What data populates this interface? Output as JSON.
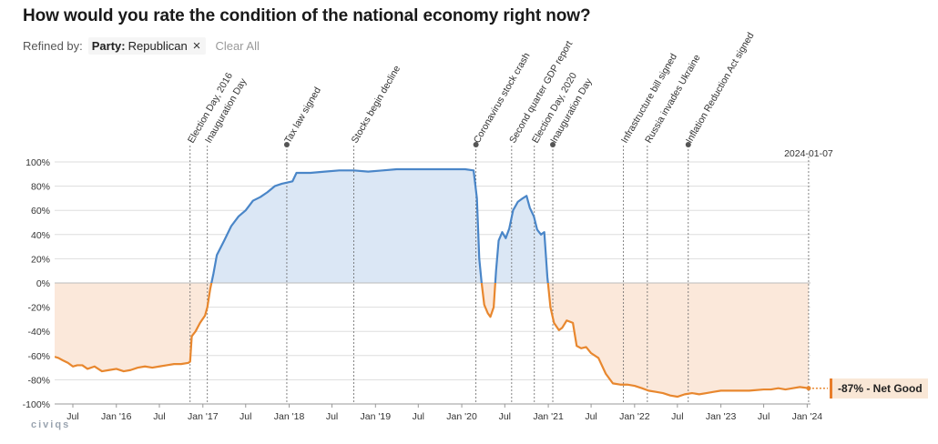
{
  "title": "How would you rate the condition of the national economy right now?",
  "filter": {
    "label": "Refined by:",
    "chip_key": "Party:",
    "chip_value": "Republican",
    "clear_label": "Clear All"
  },
  "brand": "civiqs",
  "badge_text": "-87% - Net Good",
  "colors": {
    "positive": "#4a86c8",
    "positive_fill": "#dbe7f5",
    "negative": "#e8872e",
    "negative_fill": "#fbe8da",
    "gridline": "#dddddd",
    "event_line": "#666666"
  },
  "chart_data": {
    "type": "area",
    "title": "How would you rate the condition of the national economy right now?",
    "y_label": "Net Good",
    "ylim": [
      -100,
      100
    ],
    "xlim": [
      "2015-04-15",
      "2024-01-15"
    ],
    "y_ticks": [
      "100%",
      "80%",
      "60%",
      "40%",
      "20%",
      "0%",
      "-20%",
      "-40%",
      "-60%",
      "-80%",
      "-100%"
    ],
    "x_ticks": [
      {
        "date": "2015-07-01",
        "label": "Jul"
      },
      {
        "date": "2016-01-01",
        "label": "Jan '16"
      },
      {
        "date": "2016-07-01",
        "label": "Jul"
      },
      {
        "date": "2017-01-01",
        "label": "Jan '17"
      },
      {
        "date": "2017-07-01",
        "label": "Jul"
      },
      {
        "date": "2018-01-01",
        "label": "Jan '18"
      },
      {
        "date": "2018-07-01",
        "label": "Jul"
      },
      {
        "date": "2019-01-01",
        "label": "Jan '19"
      },
      {
        "date": "2019-07-01",
        "label": "Jul"
      },
      {
        "date": "2020-01-01",
        "label": "Jan '20"
      },
      {
        "date": "2020-07-01",
        "label": "Jul"
      },
      {
        "date": "2021-01-01",
        "label": "Jan '21"
      },
      {
        "date": "2021-07-01",
        "label": "Jul"
      },
      {
        "date": "2022-01-01",
        "label": "Jan '22"
      },
      {
        "date": "2022-07-01",
        "label": "Jul"
      },
      {
        "date": "2023-01-01",
        "label": "Jan '23"
      },
      {
        "date": "2023-07-01",
        "label": "Jul"
      },
      {
        "date": "2024-01-01",
        "label": "Jan '24"
      }
    ],
    "events": [
      {
        "date": "2016-11-08",
        "label": "Election Day, 2016",
        "dot": false
      },
      {
        "date": "2017-01-20",
        "label": "Inauguration Day",
        "dot": false
      },
      {
        "date": "2017-12-22",
        "label": "Tax law signed",
        "dot": true
      },
      {
        "date": "2018-10-01",
        "label": "Stocks begin decline",
        "dot": false
      },
      {
        "date": "2020-03-01",
        "label": "Coronavirus stock crash",
        "dot": true
      },
      {
        "date": "2020-07-30",
        "label": "Second quarter GDP report",
        "dot": false
      },
      {
        "date": "2020-11-03",
        "label": "Election Day, 2020",
        "dot": false
      },
      {
        "date": "2021-01-20",
        "label": "Inauguration Day",
        "dot": true
      },
      {
        "date": "2021-11-15",
        "label": "Infrastructure bill signed",
        "dot": false
      },
      {
        "date": "2022-02-24",
        "label": "Russia invades Ukraine",
        "dot": false
      },
      {
        "date": "2022-08-16",
        "label": "Inflation Reduction Act signed",
        "dot": true
      },
      {
        "date": "2024-01-07",
        "label": "2024-01-07",
        "dot": false,
        "current": true
      }
    ],
    "series": [
      {
        "name": "Net Good",
        "points": [
          [
            "2015-04-15",
            -61
          ],
          [
            "2015-05-01",
            -62
          ],
          [
            "2015-05-20",
            -64
          ],
          [
            "2015-06-10",
            -66
          ],
          [
            "2015-07-01",
            -69
          ],
          [
            "2015-07-20",
            -68
          ],
          [
            "2015-08-10",
            -68
          ],
          [
            "2015-09-01",
            -71
          ],
          [
            "2015-10-01",
            -69
          ],
          [
            "2015-11-01",
            -73
          ],
          [
            "2015-12-01",
            -72
          ],
          [
            "2016-01-01",
            -71
          ],
          [
            "2016-02-01",
            -73
          ],
          [
            "2016-03-01",
            -72
          ],
          [
            "2016-04-01",
            -70
          ],
          [
            "2016-05-01",
            -69
          ],
          [
            "2016-06-01",
            -70
          ],
          [
            "2016-07-01",
            -69
          ],
          [
            "2016-08-01",
            -68
          ],
          [
            "2016-09-01",
            -67
          ],
          [
            "2016-10-01",
            -67
          ],
          [
            "2016-11-01",
            -66
          ],
          [
            "2016-11-08",
            -65
          ],
          [
            "2016-11-15",
            -44
          ],
          [
            "2016-12-01",
            -40
          ],
          [
            "2016-12-20",
            -33
          ],
          [
            "2017-01-10",
            -27
          ],
          [
            "2017-01-20",
            -20
          ],
          [
            "2017-02-01",
            -5
          ],
          [
            "2017-02-15",
            8
          ],
          [
            "2017-03-01",
            23
          ],
          [
            "2017-04-01",
            35
          ],
          [
            "2017-05-01",
            47
          ],
          [
            "2017-06-01",
            55
          ],
          [
            "2017-07-01",
            60
          ],
          [
            "2017-08-01",
            68
          ],
          [
            "2017-09-01",
            71
          ],
          [
            "2017-10-01",
            75
          ],
          [
            "2017-11-01",
            80
          ],
          [
            "2017-12-01",
            82
          ],
          [
            "2018-01-15",
            84
          ],
          [
            "2018-02-01",
            91
          ],
          [
            "2018-04-01",
            91
          ],
          [
            "2018-06-01",
            92
          ],
          [
            "2018-08-01",
            93
          ],
          [
            "2018-10-01",
            93
          ],
          [
            "2018-12-01",
            92
          ],
          [
            "2019-02-01",
            93
          ],
          [
            "2019-04-01",
            94
          ],
          [
            "2019-06-01",
            94
          ],
          [
            "2019-08-01",
            94
          ],
          [
            "2019-10-01",
            94
          ],
          [
            "2019-12-01",
            94
          ],
          [
            "2020-01-15",
            94
          ],
          [
            "2020-02-20",
            93
          ],
          [
            "2020-03-05",
            70
          ],
          [
            "2020-03-15",
            20
          ],
          [
            "2020-03-25",
            0
          ],
          [
            "2020-04-05",
            -18
          ],
          [
            "2020-04-20",
            -25
          ],
          [
            "2020-05-01",
            -28
          ],
          [
            "2020-05-15",
            -20
          ],
          [
            "2020-05-25",
            10
          ],
          [
            "2020-06-05",
            35
          ],
          [
            "2020-06-20",
            42
          ],
          [
            "2020-07-05",
            37
          ],
          [
            "2020-07-20",
            45
          ],
          [
            "2020-08-05",
            60
          ],
          [
            "2020-08-25",
            67
          ],
          [
            "2020-09-15",
            70
          ],
          [
            "2020-10-01",
            72
          ],
          [
            "2020-10-15",
            62
          ],
          [
            "2020-11-01",
            55
          ],
          [
            "2020-11-15",
            44
          ],
          [
            "2020-12-01",
            40
          ],
          [
            "2020-12-15",
            42
          ],
          [
            "2020-12-28",
            5
          ],
          [
            "2021-01-10",
            -20
          ],
          [
            "2021-01-25",
            -33
          ],
          [
            "2021-02-15",
            -39
          ],
          [
            "2021-03-01",
            -37
          ],
          [
            "2021-03-20",
            -31
          ],
          [
            "2021-04-15",
            -33
          ],
          [
            "2021-05-01",
            -52
          ],
          [
            "2021-05-20",
            -54
          ],
          [
            "2021-06-10",
            -53
          ],
          [
            "2021-07-01",
            -58
          ],
          [
            "2021-08-01",
            -62
          ],
          [
            "2021-09-01",
            -75
          ],
          [
            "2021-10-01",
            -83
          ],
          [
            "2021-11-01",
            -84
          ],
          [
            "2021-12-01",
            -84
          ],
          [
            "2022-01-01",
            -85
          ],
          [
            "2022-02-01",
            -87
          ],
          [
            "2022-03-01",
            -89
          ],
          [
            "2022-04-01",
            -90
          ],
          [
            "2022-05-01",
            -91
          ],
          [
            "2022-06-01",
            -93
          ],
          [
            "2022-07-01",
            -94
          ],
          [
            "2022-08-01",
            -92
          ],
          [
            "2022-09-01",
            -91
          ],
          [
            "2022-10-01",
            -92
          ],
          [
            "2022-11-01",
            -91
          ],
          [
            "2022-12-01",
            -90
          ],
          [
            "2023-01-01",
            -89
          ],
          [
            "2023-03-01",
            -89
          ],
          [
            "2023-05-01",
            -89
          ],
          [
            "2023-07-01",
            -88
          ],
          [
            "2023-08-01",
            -88
          ],
          [
            "2023-09-01",
            -87
          ],
          [
            "2023-10-01",
            -88
          ],
          [
            "2023-11-01",
            -87
          ],
          [
            "2023-12-01",
            -86
          ],
          [
            "2024-01-07",
            -87
          ]
        ]
      }
    ]
  }
}
